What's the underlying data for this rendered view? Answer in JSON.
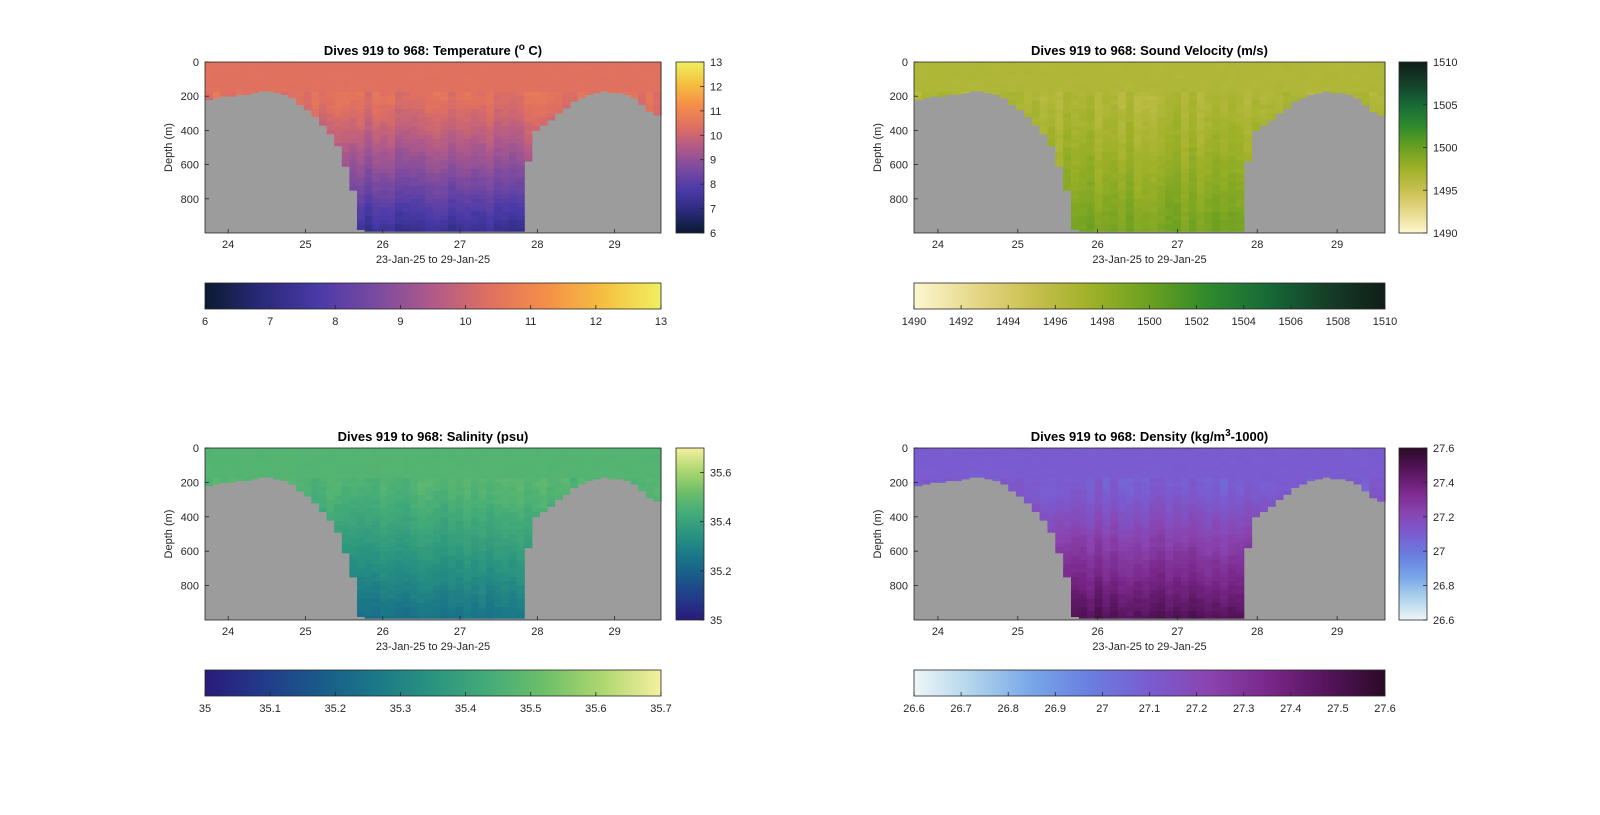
{
  "figure": {
    "type": "heatmap",
    "panels": [
      {
        "id": "temperature",
        "title_main": "Dives 919 to 968: Temperature (",
        "title_sup": "o",
        "title_tail": " C)",
        "xlabel": "23-Jan-25 to 29-Jan-25",
        "ylabel": "Depth (m)",
        "xticks": [
          "24",
          "25",
          "26",
          "27",
          "28",
          "29"
        ],
        "yticks": [
          "0",
          "200",
          "400",
          "600",
          "800"
        ],
        "colorbar_ticks": [
          "6",
          "7",
          "8",
          "9",
          "10",
          "11",
          "12",
          "13"
        ],
        "hbar_ticks": [
          "6",
          "7",
          "8",
          "9",
          "10",
          "11",
          "12",
          "13"
        ],
        "colormap": [
          "#0a1a30",
          "#2a2a7a",
          "#4a3aa8",
          "#7a4aa0",
          "#b05a8a",
          "#e07060",
          "#f58f48",
          "#f5c040",
          "#f0f060"
        ]
      },
      {
        "id": "sound-velocity",
        "title_main": "Dives 919 to 968: Sound Velocity (m/s)",
        "title_sup": "",
        "title_tail": "",
        "xlabel": "23-Jan-25 to 29-Jan-25",
        "ylabel": "Depth (m)",
        "xticks": [
          "24",
          "25",
          "26",
          "27",
          "28",
          "29"
        ],
        "yticks": [
          "0",
          "200",
          "400",
          "600",
          "800"
        ],
        "colorbar_ticks": [
          "1490",
          "1495",
          "1500",
          "1505",
          "1510"
        ],
        "hbar_ticks": [
          "1490",
          "1492",
          "1494",
          "1496",
          "1498",
          "1500",
          "1502",
          "1504",
          "1506",
          "1508",
          "1510"
        ],
        "colormap": [
          "#fdf7d0",
          "#e6d98a",
          "#c8c050",
          "#9fb128",
          "#6aa020",
          "#2f8a2c",
          "#176a38",
          "#143f28",
          "#101e18"
        ]
      },
      {
        "id": "salinity",
        "title_main": "Dives 919 to 968: Salinity (psu)",
        "title_sup": "",
        "title_tail": "",
        "xlabel": "23-Jan-25 to 29-Jan-25",
        "ylabel": "Depth (m)",
        "xticks": [
          "24",
          "25",
          "26",
          "27",
          "28",
          "29"
        ],
        "yticks": [
          "0",
          "200",
          "400",
          "600",
          "800"
        ],
        "colorbar_ticks": [
          "35",
          "35.2",
          "35.4",
          "35.6"
        ],
        "hbar_ticks": [
          "35",
          "35.1",
          "35.2",
          "35.3",
          "35.4",
          "35.5",
          "35.6",
          "35.7"
        ],
        "colormap": [
          "#2a1a7a",
          "#223a8a",
          "#1a5a8a",
          "#1a7888",
          "#2a9480",
          "#44ac78",
          "#70c068",
          "#b0d870",
          "#f5f0a0"
        ]
      },
      {
        "id": "density",
        "title_main": "Dives 919 to 968: Density (kg/m",
        "title_sup": "3",
        "title_tail": "-1000)",
        "xlabel": "23-Jan-25 to 29-Jan-25",
        "ylabel": "Depth (m)",
        "xticks": [
          "24",
          "25",
          "26",
          "27",
          "28",
          "29"
        ],
        "yticks": [
          "0",
          "200",
          "400",
          "600",
          "800"
        ],
        "colorbar_ticks": [
          "26.6",
          "26.8",
          "27",
          "27.2",
          "27.4",
          "27.6"
        ],
        "hbar_ticks": [
          "26.6",
          "26.7",
          "26.8",
          "26.9",
          "27",
          "27.1",
          "27.2",
          "27.3",
          "27.4",
          "27.5",
          "27.6"
        ],
        "colormap": [
          "#eef6f8",
          "#b0d4ec",
          "#78a6e8",
          "#6a7ee0",
          "#7a5cd0",
          "#8a44b0",
          "#7a288a",
          "#56145c",
          "#2a0a26"
        ]
      }
    ]
  },
  "chart_data": [
    {
      "type": "heatmap",
      "title": "Dives 919 to 968: Temperature (o C)",
      "xlabel": "23-Jan-25 to 29-Jan-25",
      "ylabel": "Depth (m)",
      "xlim": [
        23.7,
        29.6
      ],
      "ylim": [
        0,
        1000
      ],
      "y_reversed": true,
      "color_range": [
        6,
        13
      ],
      "surface_value": 10.4,
      "deep_value": 7.2,
      "deep_start_depth": 350,
      "seafloor_depth_by_day": [
        [
          23.7,
          220
        ],
        [
          24.0,
          200
        ],
        [
          24.5,
          170
        ],
        [
          24.8,
          200
        ],
        [
          25.1,
          310
        ],
        [
          25.4,
          460
        ],
        [
          25.6,
          710
        ],
        [
          25.72,
          990
        ],
        [
          27.82,
          990
        ],
        [
          27.9,
          430
        ],
        [
          28.2,
          330
        ],
        [
          28.5,
          220
        ],
        [
          28.8,
          170
        ],
        [
          29.2,
          190
        ],
        [
          29.5,
          310
        ],
        [
          29.6,
          310
        ]
      ]
    },
    {
      "type": "heatmap",
      "title": "Dives 919 to 968: Sound Velocity (m/s)",
      "xlabel": "23-Jan-25 to 29-Jan-25",
      "ylabel": "Depth (m)",
      "xlim": [
        23.7,
        29.6
      ],
      "ylim": [
        0,
        1000
      ],
      "y_reversed": true,
      "color_range": [
        1490,
        1510
      ],
      "surface_value": 1496.5,
      "deep_value": 1499.5,
      "deep_start_depth": 350,
      "seafloor_depth_by_day": [
        [
          23.7,
          220
        ],
        [
          24.0,
          200
        ],
        [
          24.5,
          170
        ],
        [
          24.8,
          200
        ],
        [
          25.1,
          310
        ],
        [
          25.4,
          460
        ],
        [
          25.6,
          710
        ],
        [
          25.72,
          990
        ],
        [
          27.82,
          990
        ],
        [
          27.9,
          430
        ],
        [
          28.2,
          330
        ],
        [
          28.5,
          220
        ],
        [
          28.8,
          170
        ],
        [
          29.2,
          190
        ],
        [
          29.5,
          310
        ],
        [
          29.6,
          310
        ]
      ]
    },
    {
      "type": "heatmap",
      "title": "Dives 919 to 968: Salinity (psu)",
      "xlabel": "23-Jan-25 to 29-Jan-25",
      "ylabel": "Depth (m)",
      "xlim": [
        23.7,
        29.6
      ],
      "ylim": [
        0,
        1000
      ],
      "y_reversed": true,
      "color_range": [
        35,
        35.7
      ],
      "surface_value": 35.47,
      "deep_value": 35.24,
      "deep_start_depth": 350,
      "seafloor_depth_by_day": [
        [
          23.7,
          220
        ],
        [
          24.0,
          200
        ],
        [
          24.5,
          170
        ],
        [
          24.8,
          200
        ],
        [
          25.1,
          310
        ],
        [
          25.4,
          460
        ],
        [
          25.6,
          710
        ],
        [
          25.72,
          990
        ],
        [
          27.82,
          990
        ],
        [
          27.9,
          430
        ],
        [
          28.2,
          330
        ],
        [
          28.5,
          220
        ],
        [
          28.8,
          170
        ],
        [
          29.2,
          190
        ],
        [
          29.5,
          310
        ],
        [
          29.6,
          310
        ]
      ]
    },
    {
      "type": "heatmap",
      "title": "Dives 919 to 968: Density (kg/m3-1000)",
      "xlabel": "23-Jan-25 to 29-Jan-25",
      "ylabel": "Depth (m)",
      "xlim": [
        23.7,
        29.6
      ],
      "ylim": [
        0,
        1000
      ],
      "y_reversed": true,
      "color_range": [
        26.6,
        27.6
      ],
      "surface_value": 27.1,
      "deep_value": 27.5,
      "deep_start_depth": 350,
      "seafloor_depth_by_day": [
        [
          23.7,
          220
        ],
        [
          24.0,
          200
        ],
        [
          24.5,
          170
        ],
        [
          24.8,
          200
        ],
        [
          25.1,
          310
        ],
        [
          25.4,
          460
        ],
        [
          25.6,
          710
        ],
        [
          25.72,
          990
        ],
        [
          27.82,
          990
        ],
        [
          27.9,
          430
        ],
        [
          28.2,
          330
        ],
        [
          28.5,
          220
        ],
        [
          28.8,
          170
        ],
        [
          29.2,
          190
        ],
        [
          29.5,
          310
        ],
        [
          29.6,
          310
        ]
      ]
    }
  ]
}
